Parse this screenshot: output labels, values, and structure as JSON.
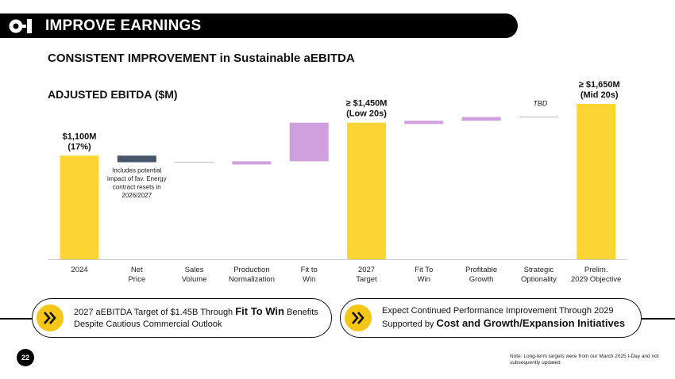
{
  "header": {
    "title": "IMPROVE EARNINGS"
  },
  "subtitle": {
    "bold": "CONSISTENT IMPROVEMENT",
    "rest": " in Sustainable aEBITDA"
  },
  "chart_data": {
    "type": "bar",
    "subtype": "waterfall",
    "title": "ADJUSTED EBITDA ($M)",
    "unit": "$M",
    "categories": [
      [
        "2024"
      ],
      [
        "Net",
        "Price"
      ],
      [
        "Sales",
        "Volume"
      ],
      [
        "Production",
        "Normalization"
      ],
      [
        "Fit to",
        "Win"
      ],
      [
        "2027",
        "Target"
      ],
      [
        "Fit To",
        "Win"
      ],
      [
        "Profitable",
        "Growth"
      ],
      [
        "Strategic",
        "Optionality"
      ],
      [
        "Prelim.",
        "2029 Objective"
      ]
    ],
    "bars": [
      {
        "kind": "total",
        "start": 0,
        "end": 1100
      },
      {
        "kind": "decrease",
        "start": 1100,
        "end": 1030
      },
      {
        "kind": "neutral",
        "start": 1030,
        "end": 1030
      },
      {
        "kind": "increase",
        "start": 1030,
        "end": 1040
      },
      {
        "kind": "increase",
        "start": 1040,
        "end": 1450
      },
      {
        "kind": "total",
        "start": 0,
        "end": 1450
      },
      {
        "kind": "increase",
        "start": 1450,
        "end": 1470
      },
      {
        "kind": "increase",
        "start": 1470,
        "end": 1510
      },
      {
        "kind": "tbd",
        "start": 1510,
        "end": 1510
      },
      {
        "kind": "total",
        "start": 0,
        "end": 1650
      }
    ],
    "labels": [
      {
        "index": 0,
        "lines": [
          "$1,100M",
          "(17%)"
        ]
      },
      {
        "index": 5,
        "lines": [
          "≥ $1,450M",
          "(Low 20s)"
        ]
      },
      {
        "index": 9,
        "lines": [
          "≥ $1,650M",
          "(Mid 20s)"
        ]
      }
    ],
    "annotations": [
      {
        "index": 1,
        "lines": [
          "Includes potential",
          "impact of fav. Energy",
          "contract resets in",
          "2026/2027"
        ]
      },
      {
        "index": 8,
        "lines": [
          "TBD"
        ]
      }
    ],
    "ylim": [
      0,
      1700
    ],
    "colors": {
      "total": "#fcd535",
      "decrease": "#475569",
      "increase": "#cfa0dd",
      "neutral": "#b4b4b4",
      "tbd": "#b4b4b4",
      "axis": "#cccccc"
    }
  },
  "callouts": [
    {
      "parts": [
        {
          "text": "2027 aEBITDA Target of $1.45B Through ",
          "bold": false
        },
        {
          "text": "Fit To Win",
          "bold": true
        },
        {
          "text": " Benefits Despite Cautious Commercial Outlook",
          "bold": false
        }
      ]
    },
    {
      "parts": [
        {
          "text": "Expect Continued Performance Improvement Through 2029 Supported by ",
          "bold": false
        },
        {
          "text": "Cost and Growth/Expansion Initiatives",
          "bold": true
        }
      ]
    }
  ],
  "footer": {
    "page_number": "22",
    "note": "Note: Long-term targets were from our March 2025 I-Day and not subsequently updated"
  }
}
